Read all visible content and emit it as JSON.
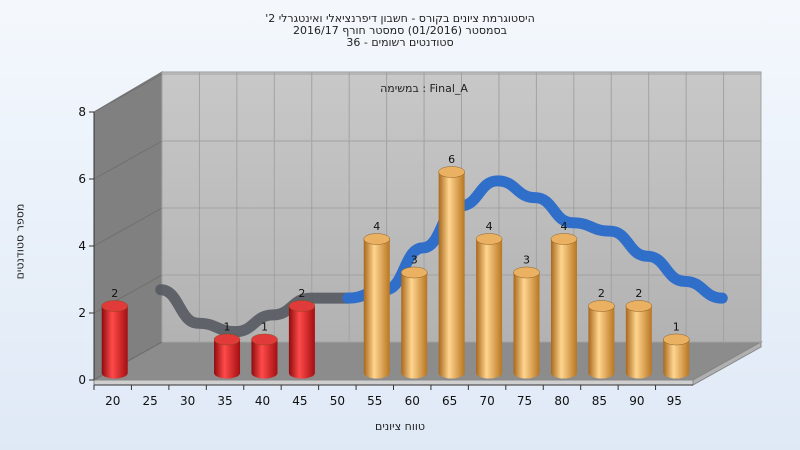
{
  "colors": {
    "bar_fail": "#d82024",
    "bar_pass": "#e0a23c",
    "curve_front": "#2f6fca",
    "curve_back": "#555a60",
    "wall_back": "#bcbcbc",
    "wall_side": "#808080",
    "floor": "#8c8c8c"
  },
  "chart_data": {
    "type": "bar",
    "title_lines": [
      "היסטוגרמת ציונים בקורס - חשבון דיפרנציאלי ואינטגרלי 2'",
      "בסמסטר  (01/2016)  סמסטר חורף 2016/17",
      "סטודנטים רשומים - 36"
    ],
    "annotation": "במשימה : Final_A",
    "xlabel": "טווח ציונים",
    "ylabel": "מספר סטודנטים",
    "categories": [
      "20",
      "25",
      "30",
      "35",
      "40",
      "45",
      "50",
      "55",
      "60",
      "65",
      "70",
      "75",
      "80",
      "85",
      "90",
      "95"
    ],
    "x_ticks": [
      "20",
      "25",
      "30",
      "35",
      "40",
      "45",
      "50",
      "55",
      "60",
      "65",
      "70",
      "75",
      "80",
      "85",
      "90",
      "95"
    ],
    "y_ticks": [
      "0",
      "2",
      "4",
      "6",
      "8"
    ],
    "ylim": [
      0,
      8
    ],
    "series": [
      {
        "values": [
          2,
          0,
          0,
          1,
          1,
          2,
          0,
          4,
          3,
          6,
          4,
          3,
          4,
          2,
          2,
          1
        ],
        "group": [
          "fail",
          "fail",
          "fail",
          "fail",
          "fail",
          "fail",
          "fail",
          "pass",
          "pass",
          "pass",
          "pass",
          "pass",
          "pass",
          "pass",
          "pass",
          "pass"
        ]
      }
    ],
    "curve": {
      "type": "smoothed distribution ribbon"
    },
    "grid": true,
    "legend": "none"
  }
}
